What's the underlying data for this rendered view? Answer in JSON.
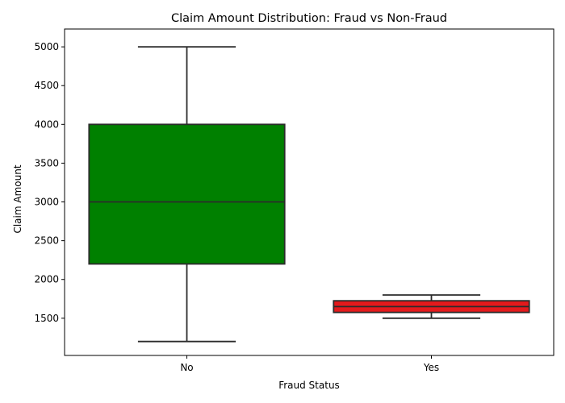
{
  "chart_data": {
    "type": "box",
    "title": "Claim Amount Distribution: Fraud vs Non-Fraud",
    "xlabel": "Fraud Status",
    "ylabel": "Claim Amount",
    "categories": [
      "No",
      "Yes"
    ],
    "ylim": [
      1020,
      5230
    ],
    "yticks": [
      1500,
      2000,
      2500,
      3000,
      3500,
      4000,
      4500,
      5000
    ],
    "ytick_labels": [
      "1500",
      "2000",
      "2500",
      "3000",
      "3500",
      "4000",
      "4500",
      "5000"
    ],
    "grid": false,
    "legend": "none",
    "boxes": [
      {
        "category": "No",
        "whisker_low": 1200,
        "q1": 2200,
        "median": 3000,
        "q3": 4000,
        "whisker_high": 5000,
        "color": "#008000"
      },
      {
        "category": "Yes",
        "whisker_low": 1500,
        "q1": 1575,
        "median": 1650,
        "q3": 1725,
        "whisker_high": 1800,
        "color": "#e41a1c"
      }
    ]
  }
}
